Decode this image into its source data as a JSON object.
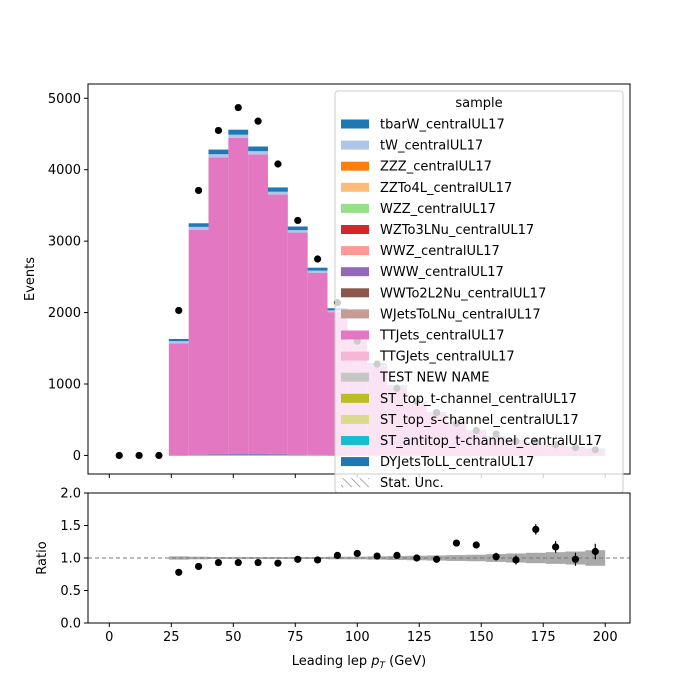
{
  "chart_data": {
    "type": "bar",
    "title": "",
    "xlabel_main": "Leading lep ",
    "xlabel_math": "p",
    "xlabel_sub": "T",
    "xlabel_unit": " (GeV)",
    "xlim": [
      -8.6,
      210
    ],
    "main": {
      "ylabel": "Events",
      "ylim": [
        -260,
        5200
      ],
      "yticks": [
        0,
        1000,
        2000,
        3000,
        4000,
        5000
      ],
      "xticks": [
        0,
        25,
        50,
        75,
        100,
        125,
        150,
        175,
        200
      ],
      "bin_edges": [
        24,
        32,
        40,
        48,
        56,
        64,
        72,
        80,
        88,
        96,
        104,
        112,
        120,
        128,
        136,
        144,
        152,
        160,
        168,
        176,
        184,
        192,
        200
      ],
      "stack_series": [
        {
          "name": "DYJetsToLL_centralUL17",
          "color": "#1f77b4",
          "values": [
            5,
            10,
            12,
            15,
            15,
            12,
            10,
            8,
            6,
            5,
            4,
            3,
            3,
            2,
            2,
            2,
            1,
            1,
            1,
            1,
            1,
            1
          ]
        },
        {
          "name": "TTJets_centralUL17",
          "color": "#e377c2",
          "values": [
            1565,
            3150,
            4160,
            4430,
            4200,
            3640,
            3110,
            2550,
            2000,
            1600,
            1250,
            950,
            730,
            590,
            450,
            340,
            260,
            210,
            175,
            140,
            115,
            90
          ]
        },
        {
          "name": "tW_centralUL17",
          "color": "#aec7e8",
          "values": [
            30,
            40,
            45,
            45,
            45,
            40,
            35,
            30,
            25,
            18,
            14,
            11,
            8,
            7,
            6,
            4,
            3,
            3,
            2,
            2,
            2,
            2
          ]
        },
        {
          "name": "tbarW_centralUL17",
          "color": "#1f77b4",
          "values": [
            30,
            50,
            65,
            70,
            65,
            60,
            50,
            40,
            30,
            23,
            18,
            14,
            10,
            8,
            6,
            5,
            4,
            3,
            3,
            2,
            2,
            2
          ]
        }
      ],
      "unc_top": [
        1630,
        3250,
        4280,
        4560,
        4325,
        3752,
        3205,
        2628,
        2061,
        1646,
        1286,
        978,
        751,
        607,
        464,
        351,
        268,
        217,
        181,
        145,
        120,
        95
      ],
      "data_x": [
        4,
        12,
        20,
        28,
        36,
        44,
        52,
        60,
        68,
        76,
        84,
        92,
        100,
        108,
        116,
        124,
        132,
        140,
        148,
        156,
        164,
        172,
        180,
        188,
        196
      ],
      "data_y": [
        0,
        0,
        0,
        2030,
        3710,
        4550,
        4870,
        4680,
        4080,
        3290,
        2750,
        2140,
        1600,
        1280,
        940,
        760,
        600,
        450,
        350,
        300,
        200,
        190,
        150,
        110,
        80
      ]
    },
    "ratio": {
      "ylabel": "Ratio",
      "ylim": [
        0.0,
        2.0
      ],
      "yticks": [
        "0.0",
        "0.5",
        "1.0",
        "1.5",
        "2.0"
      ],
      "reference": 1.0,
      "unc_halfwidth": [
        0.025,
        0.02,
        0.015,
        0.015,
        0.015,
        0.015,
        0.015,
        0.015,
        0.02,
        0.02,
        0.025,
        0.03,
        0.035,
        0.04,
        0.045,
        0.05,
        0.06,
        0.07,
        0.08,
        0.09,
        0.1,
        0.12
      ],
      "points_x": [
        28,
        36,
        44,
        52,
        60,
        68,
        76,
        84,
        92,
        100,
        108,
        116,
        124,
        132,
        140,
        148,
        156,
        164,
        172,
        180,
        188,
        196
      ],
      "points_y": [
        0.78,
        0.87,
        0.93,
        0.93,
        0.93,
        0.92,
        0.98,
        0.97,
        1.04,
        1.07,
        1.03,
        1.04,
        1.0,
        0.98,
        1.23,
        1.2,
        1.02,
        0.97,
        1.44,
        1.17,
        0.98,
        1.1
      ],
      "points_err": [
        0.01,
        0.01,
        0.01,
        0.01,
        0.01,
        0.01,
        0.01,
        0.01,
        0.02,
        0.02,
        0.02,
        0.03,
        0.03,
        0.04,
        0.05,
        0.05,
        0.06,
        0.07,
        0.08,
        0.09,
        0.1,
        0.12
      ]
    },
    "legend": {
      "title": "sample",
      "placement": "upper right",
      "entries": [
        {
          "label": "tbarW_centralUL17",
          "color": "#1f77b4"
        },
        {
          "label": "tW_centralUL17",
          "color": "#aec7e8"
        },
        {
          "label": "ZZZ_centralUL17",
          "color": "#ff7f0e"
        },
        {
          "label": "ZZTo4L_centralUL17",
          "color": "#ffbb78"
        },
        {
          "label": "WZZ_centralUL17",
          "color": "#98df8a"
        },
        {
          "label": "WZTo3LNu_centralUL17",
          "color": "#d62728"
        },
        {
          "label": "WWZ_centralUL17",
          "color": "#ff9896"
        },
        {
          "label": "WWW_centralUL17",
          "color": "#9467bd"
        },
        {
          "label": "WWTo2L2Nu_centralUL17",
          "color": "#8c564b"
        },
        {
          "label": "WJetsToLNu_centralUL17",
          "color": "#c49c94"
        },
        {
          "label": "TTJets_centralUL17",
          "color": "#e377c2"
        },
        {
          "label": "TTGJets_centralUL17",
          "color": "#f7b6d2"
        },
        {
          "label": "TEST NEW NAME",
          "color": "#c7c7c7"
        },
        {
          "label": "ST_top_t-channel_centralUL17",
          "color": "#bcbd22"
        },
        {
          "label": "ST_top_s-channel_centralUL17",
          "color": "#dbdb8d"
        },
        {
          "label": "ST_antitop_t-channel_centralUL17",
          "color": "#17becf"
        },
        {
          "label": "DYJetsToLL_centralUL17",
          "color": "#1f77b4"
        }
      ],
      "unc_label": "Stat. Unc."
    }
  }
}
